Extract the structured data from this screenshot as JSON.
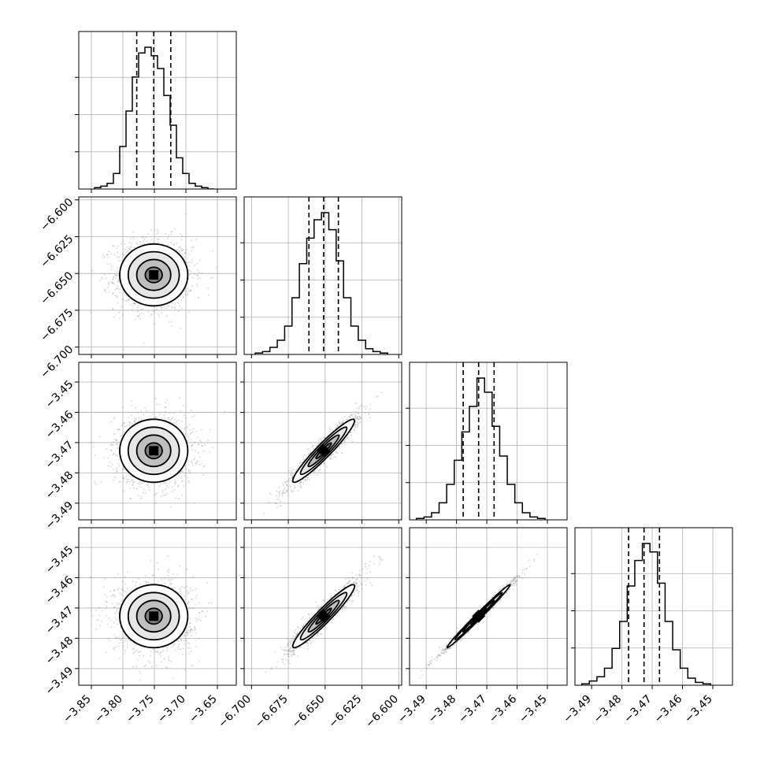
{
  "chart_data": {
    "type": "scatter",
    "subtype": "corner-plot",
    "title": "",
    "parameters": [
      {
        "index": 0,
        "label": "",
        "range": [
          -3.87,
          -3.62
        ],
        "ticks": [
          -3.85,
          -3.8,
          -3.75,
          -3.7,
          -3.65
        ],
        "tick_labels": [
          "−3.85",
          "−3.80",
          "−3.75",
          "−3.70",
          "−3.65"
        ],
        "mean": -3.751,
        "sigma": 0.027,
        "quantiles": [
          -3.778,
          -3.751,
          -3.724
        ]
      },
      {
        "index": 1,
        "label": "",
        "range": [
          -6.705,
          -6.598
        ],
        "ticks": [
          -6.7,
          -6.675,
          -6.65,
          -6.625,
          -6.6
        ],
        "tick_labels": [
          "−6.700",
          "−6.675",
          "−6.650",
          "−6.625",
          "−6.600"
        ],
        "mean": -6.651,
        "sigma": 0.0105,
        "quantiles": [
          -6.661,
          -6.651,
          -6.641
        ]
      },
      {
        "index": 2,
        "label": "",
        "range": [
          -3.4955,
          -3.4435
        ],
        "ticks": [
          -3.49,
          -3.48,
          -3.47,
          -3.46,
          -3.45
        ],
        "tick_labels": [
          "−3.49",
          "−3.48",
          "−3.47",
          "−3.46",
          "−3.45"
        ],
        "mean": -3.4727,
        "sigma": 0.0052,
        "quantiles": [
          -3.4778,
          -3.4727,
          -3.4676
        ]
      },
      {
        "index": 3,
        "label": "",
        "range": [
          -3.4955,
          -3.4435
        ],
        "ticks": [
          -3.49,
          -3.48,
          -3.47,
          -3.46,
          -3.45
        ],
        "tick_labels": [
          "−3.49",
          "−3.48",
          "−3.47",
          "−3.46",
          "−3.45"
        ],
        "mean": -3.4727,
        "sigma": 0.0052,
        "quantiles": [
          -3.4778,
          -3.4727,
          -3.4676
        ]
      }
    ],
    "histograms": [
      {
        "param": 0,
        "bin_centers": [
          -3.84,
          -3.83,
          -3.82,
          -3.81,
          -3.8,
          -3.79,
          -3.78,
          -3.77,
          -3.76,
          -3.75,
          -3.74,
          -3.73,
          -3.72,
          -3.71,
          -3.7,
          -3.69,
          -3.68,
          -3.67,
          -3.66
        ],
        "counts": [
          0.01,
          0.02,
          0.04,
          0.11,
          0.3,
          0.55,
          0.79,
          0.96,
          1.0,
          0.94,
          0.85,
          0.66,
          0.45,
          0.22,
          0.11,
          0.04,
          0.02,
          0.01,
          0.0
        ]
      },
      {
        "param": 1,
        "bin_centers": [
          -6.695,
          -6.69,
          -6.685,
          -6.68,
          -6.675,
          -6.67,
          -6.665,
          -6.66,
          -6.655,
          -6.65,
          -6.645,
          -6.64,
          -6.635,
          -6.63,
          -6.625,
          -6.62,
          -6.615,
          -6.61
        ],
        "counts": [
          0.01,
          0.02,
          0.05,
          0.1,
          0.2,
          0.4,
          0.64,
          0.82,
          0.95,
          1.0,
          0.88,
          0.66,
          0.4,
          0.2,
          0.1,
          0.04,
          0.02,
          0.01
        ]
      },
      {
        "param": 2,
        "bin_centers": [
          -3.492,
          -3.4895,
          -3.487,
          -3.4845,
          -3.482,
          -3.4795,
          -3.477,
          -3.4745,
          -3.472,
          -3.4695,
          -3.467,
          -3.4645,
          -3.462,
          -3.4595,
          -3.457,
          -3.4545,
          -3.452
        ],
        "counts": [
          0.01,
          0.02,
          0.05,
          0.12,
          0.25,
          0.42,
          0.62,
          0.8,
          1.0,
          0.9,
          0.66,
          0.45,
          0.25,
          0.12,
          0.05,
          0.02,
          0.01
        ]
      },
      {
        "param": 3,
        "bin_centers": [
          -3.492,
          -3.4895,
          -3.487,
          -3.4845,
          -3.482,
          -3.4795,
          -3.477,
          -3.4745,
          -3.472,
          -3.4695,
          -3.467,
          -3.4645,
          -3.462,
          -3.4595,
          -3.457,
          -3.4545,
          -3.452
        ],
        "counts": [
          0.01,
          0.03,
          0.06,
          0.12,
          0.26,
          0.45,
          0.7,
          0.88,
          1.0,
          0.94,
          0.72,
          0.45,
          0.25,
          0.12,
          0.05,
          0.02,
          0.01
        ]
      }
    ],
    "pairs": [
      {
        "x_param": 0,
        "y_param": 1,
        "correlation": 0.0
      },
      {
        "x_param": 0,
        "y_param": 2,
        "correlation": 0.0
      },
      {
        "x_param": 1,
        "y_param": 2,
        "correlation": 0.95
      },
      {
        "x_param": 0,
        "y_param": 3,
        "correlation": 0.0
      },
      {
        "x_param": 1,
        "y_param": 3,
        "correlation": 0.95
      },
      {
        "x_param": 2,
        "y_param": 3,
        "correlation": 0.992
      }
    ],
    "contour_levels_sigma": [
      0.5,
      1.0,
      1.5,
      2.0
    ],
    "grid": true,
    "colors": {
      "line": "#000000",
      "grid": "#b0b0b0",
      "points": "#808080"
    }
  }
}
